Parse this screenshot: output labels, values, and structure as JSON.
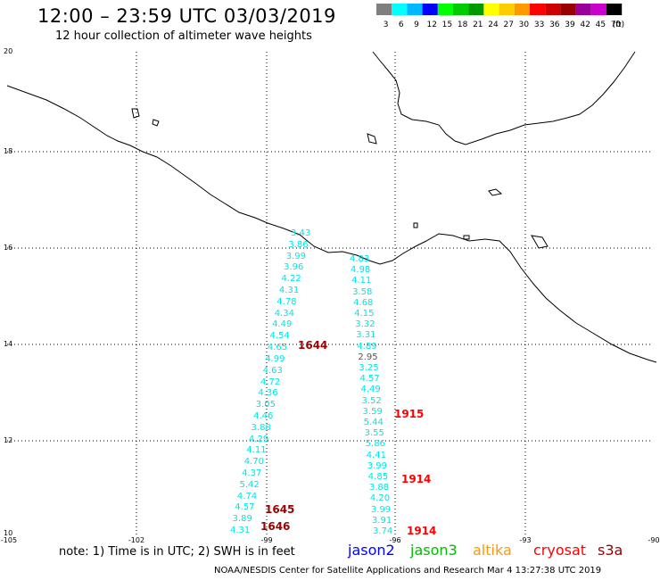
{
  "header": {
    "title": "12:00 – 23:59 UTC 03/03/2019",
    "subtitle": "12 hour collection of altimeter wave heights"
  },
  "color_scale": {
    "unit": "(ft)",
    "bins": [
      {
        "label": "3",
        "color": "#7f7f7f"
      },
      {
        "label": "6",
        "color": "#00ffff"
      },
      {
        "label": "9",
        "color": "#00b8ff"
      },
      {
        "label": "12",
        "color": "#0000ff"
      },
      {
        "label": "15",
        "color": "#00ff00"
      },
      {
        "label": "18",
        "color": "#00cc00"
      },
      {
        "label": "21",
        "color": "#009900"
      },
      {
        "label": "24",
        "color": "#ffff00"
      },
      {
        "label": "27",
        "color": "#ffcc00"
      },
      {
        "label": "30",
        "color": "#ff9900"
      },
      {
        "label": "33",
        "color": "#ff0000"
      },
      {
        "label": "36",
        "color": "#cc0000"
      },
      {
        "label": "39",
        "color": "#990000"
      },
      {
        "label": "42",
        "color": "#990099"
      },
      {
        "label": "45",
        "color": "#cc00cc"
      },
      {
        "label": "70",
        "color": "#000000"
      }
    ]
  },
  "axes": {
    "lat_labels": [
      "20",
      "18",
      "16",
      "14",
      "12",
      "10"
    ],
    "lon_labels": [
      "-105",
      "-102",
      "-99",
      "-96",
      "-93",
      "-90"
    ]
  },
  "tracks": [
    {
      "name": "track-west",
      "values": [
        "3.43",
        "3.86",
        "3.99",
        "3.96",
        "4.22",
        "4.31",
        "4.78",
        "4.34",
        "4.49",
        "4.54",
        "4.65",
        "4.99",
        "4.63",
        "4.72",
        "4.36",
        "3.05",
        "4.46",
        "3.88",
        "4.29",
        "4.11",
        "4.70",
        "4.37",
        "5.42",
        "4.74",
        "4.57",
        "3.89",
        "4.31"
      ],
      "times": [
        {
          "label": "1644",
          "color": "#990000"
        },
        {
          "label": "1645",
          "color": "#990000"
        },
        {
          "label": "1646",
          "color": "#990000"
        }
      ]
    },
    {
      "name": "track-east",
      "values": [
        "4.83",
        "4.98",
        "4.11",
        "3.58",
        "4.68",
        "4.15",
        "3.32",
        "3.31",
        "4.89",
        "2.95",
        "3.25",
        "4.57",
        "4.49",
        "3.52",
        "3.59",
        "5.44",
        "3.55",
        "5.86",
        "4.41",
        "3.99",
        "4.85",
        "3.88",
        "4.20",
        "3.99",
        "3.91",
        "3.74"
      ],
      "times": [
        {
          "label": "1915",
          "color": "#ff0000"
        },
        {
          "label": "1914",
          "color": "#ff0000"
        },
        {
          "label": "1914",
          "color": "#ff0000"
        }
      ]
    }
  ],
  "footer": {
    "note": "note:  1) Time is in UTC;  2) SWH is in feet",
    "satellites": [
      {
        "name": "jason2",
        "color": "#0000ff"
      },
      {
        "name": "jason3",
        "color": "#00bb00"
      },
      {
        "name": "altika",
        "color": "#ff9900"
      },
      {
        "name": "cryosat",
        "color": "#ff0000"
      },
      {
        "name": "s3a",
        "color": "#990000"
      }
    ],
    "credit": "NOAA/NESDIS Center for Satellite Applications and Research     Mar  4 13:27:38 UTC 2019"
  }
}
